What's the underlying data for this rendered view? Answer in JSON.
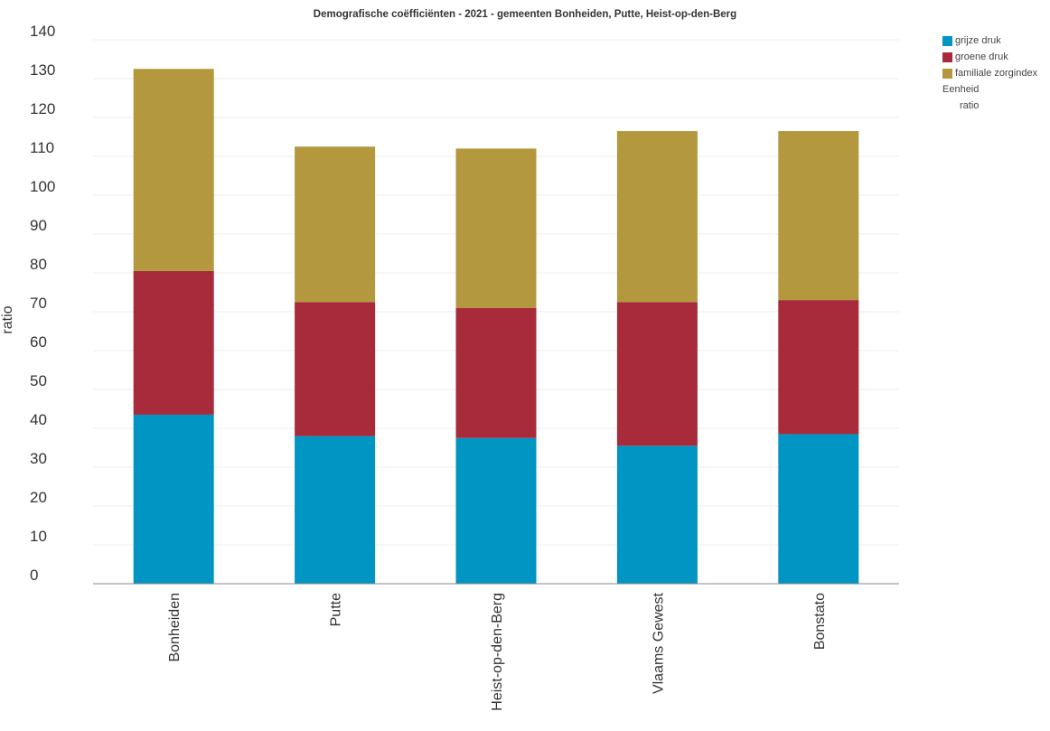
{
  "chart_data": {
    "type": "bar",
    "stacked": true,
    "title": "Demografische coëfficiënten - 2021 - gemeenten Bonheiden, Putte, Heist-op-den-Berg",
    "xlabel": "",
    "ylabel": "ratio",
    "ylim": [
      0,
      140
    ],
    "yticks": [
      0,
      10,
      20,
      30,
      40,
      50,
      60,
      70,
      80,
      90,
      100,
      110,
      120,
      130,
      140
    ],
    "grid": true,
    "legend_position": "right",
    "categories": [
      "Bonheiden",
      "Putte",
      "Heist-op-den-Berg",
      "Vlaams Gewest",
      "Bonstato"
    ],
    "series": [
      {
        "name": "grijze druk",
        "color": "#0095c2",
        "values": [
          43.5,
          38,
          37.5,
          35.5,
          38.5
        ]
      },
      {
        "name": "groene druk",
        "color": "#a72b3b",
        "values": [
          37,
          34.5,
          33.5,
          37,
          34.5
        ]
      },
      {
        "name": "familiale zorgindex",
        "color": "#b3983e",
        "values": [
          52,
          40,
          41,
          44,
          43.5
        ]
      }
    ]
  },
  "legend": {
    "unit_title": "Eenheid",
    "unit_value": "ratio"
  }
}
